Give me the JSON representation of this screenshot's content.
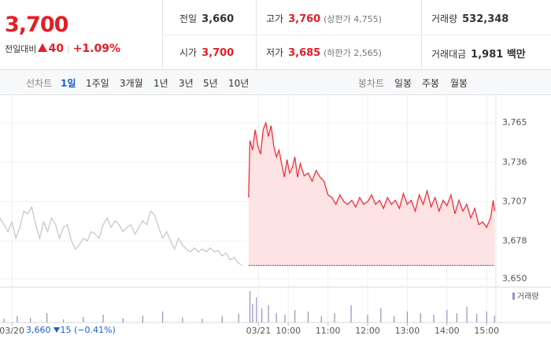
{
  "header": {
    "price": "3,700",
    "change_label": "전일대비",
    "change": "40",
    "change_rate": "+1.09%",
    "stats": [
      {
        "label": "전일",
        "value": "3,660"
      },
      {
        "label": "고가",
        "value": "3,760",
        "note": "(상한가 4,755)"
      },
      {
        "label": "거래량",
        "value": "532,348"
      },
      {
        "label": "시가",
        "value": "3,700"
      },
      {
        "label": "저가",
        "value": "3,685",
        "note": "(하한가 2,565)"
      },
      {
        "label": "거래대금",
        "value": "1,981 백만"
      }
    ]
  },
  "tabs": {
    "line_label": "선차트",
    "line": [
      "1일",
      "1주일",
      "3개월",
      "1년",
      "3년",
      "5년",
      "10년"
    ],
    "candle_label": "봉차트",
    "candle": [
      "일봉",
      "주봉",
      "월봉"
    ]
  },
  "hover": {
    "price": "3,660",
    "change": "15",
    "rate": "(−0.41%)"
  },
  "chart_data": {
    "type": "line",
    "xlim": [
      14,
      764
    ],
    "ylim": [
      3644,
      3786
    ],
    "xticks": [
      {
        "value": 32,
        "label": "03/20"
      },
      {
        "value": 405,
        "label": "03/21"
      },
      {
        "value": 450,
        "label": "10:00"
      },
      {
        "value": 510,
        "label": "11:00"
      },
      {
        "value": 570,
        "label": "12:00"
      },
      {
        "value": 630,
        "label": "13:00"
      },
      {
        "value": 690,
        "label": "14:00"
      },
      {
        "value": 750,
        "label": "15:00"
      }
    ],
    "yticks": [
      {
        "value": 3650,
        "label": "3,650"
      },
      {
        "value": 3678,
        "label": "3,678"
      },
      {
        "value": 3707,
        "label": "3,707"
      },
      {
        "value": 3736,
        "label": "3,736"
      },
      {
        "value": 3765,
        "label": "3,765"
      }
    ],
    "grid": true,
    "baseline": 3660,
    "series": [
      {
        "color": "#c8c8c8",
        "x": [
          14,
          20,
          26,
          32,
          38,
          44,
          50,
          56,
          62,
          68,
          74,
          80,
          86,
          92,
          98,
          104,
          110,
          116,
          122,
          128,
          134,
          140,
          146,
          152,
          158,
          164,
          170,
          176,
          182,
          188,
          194,
          200,
          206,
          212,
          218,
          224,
          230,
          236,
          242,
          248,
          254,
          260,
          266,
          272,
          278,
          284,
          290,
          296,
          302,
          308,
          314,
          320,
          326,
          332,
          338,
          344,
          350,
          356,
          362,
          368,
          374,
          380
        ],
        "values": [
          3695,
          3690,
          3685,
          3692,
          3680,
          3688,
          3700,
          3698,
          3703,
          3690,
          3680,
          3692,
          3685,
          3695,
          3690,
          3680,
          3688,
          3690,
          3678,
          3672,
          3675,
          3680,
          3678,
          3685,
          3683,
          3680,
          3690,
          3695,
          3688,
          3693,
          3690,
          3685,
          3688,
          3690,
          3683,
          3688,
          3693,
          3690,
          3700,
          3697,
          3688,
          3680,
          3685,
          3678,
          3672,
          3680,
          3675,
          3672,
          3670,
          3673,
          3670,
          3672,
          3670,
          3673,
          3670,
          3671,
          3667,
          3669,
          3664,
          3666,
          3662,
          3660
        ]
      },
      {
        "color": "#f0323c",
        "fill": "#fde3e4",
        "x": [
          390,
          392,
          396,
          400,
          404,
          408,
          412,
          416,
          420,
          424,
          428,
          432,
          436,
          440,
          444,
          448,
          452,
          456,
          460,
          464,
          468,
          474,
          480,
          486,
          492,
          498,
          504,
          510,
          516,
          522,
          528,
          534,
          540,
          546,
          552,
          558,
          564,
          570,
          576,
          582,
          588,
          594,
          600,
          606,
          612,
          618,
          624,
          630,
          636,
          642,
          648,
          654,
          660,
          666,
          672,
          678,
          684,
          690,
          696,
          702,
          708,
          714,
          720,
          726,
          732,
          738,
          744,
          750,
          756,
          760,
          762
        ],
        "values": [
          3710,
          3752,
          3745,
          3760,
          3748,
          3742,
          3760,
          3765,
          3755,
          3763,
          3748,
          3740,
          3745,
          3735,
          3725,
          3738,
          3728,
          3732,
          3740,
          3725,
          3735,
          3726,
          3728,
          3722,
          3730,
          3725,
          3722,
          3712,
          3710,
          3705,
          3712,
          3707,
          3705,
          3708,
          3703,
          3710,
          3705,
          3707,
          3712,
          3705,
          3708,
          3702,
          3710,
          3705,
          3708,
          3702,
          3713,
          3705,
          3708,
          3700,
          3712,
          3705,
          3715,
          3703,
          3710,
          3700,
          3708,
          3704,
          3712,
          3698,
          3708,
          3700,
          3705,
          3695,
          3702,
          3690,
          3692,
          3688,
          3695,
          3708,
          3700
        ]
      }
    ],
    "volume": {
      "name": "거래량",
      "color": "#9b8ec4",
      "ylim": [
        0,
        100
      ],
      "x": [
        20,
        40,
        60,
        85,
        110,
        140,
        170,
        200,
        230,
        260,
        290,
        320,
        350,
        375,
        392,
        396,
        402,
        410,
        420,
        432,
        445,
        460,
        480,
        500,
        520,
        545,
        570,
        590,
        610,
        630,
        650,
        670,
        690,
        705,
        720,
        735,
        750,
        762
      ],
      "values": [
        12,
        20,
        15,
        30,
        10,
        18,
        25,
        14,
        22,
        35,
        16,
        12,
        20,
        28,
        100,
        60,
        80,
        45,
        55,
        30,
        25,
        40,
        35,
        20,
        30,
        55,
        25,
        45,
        20,
        35,
        30,
        25,
        40,
        30,
        50,
        28,
        35,
        22
      ]
    }
  }
}
